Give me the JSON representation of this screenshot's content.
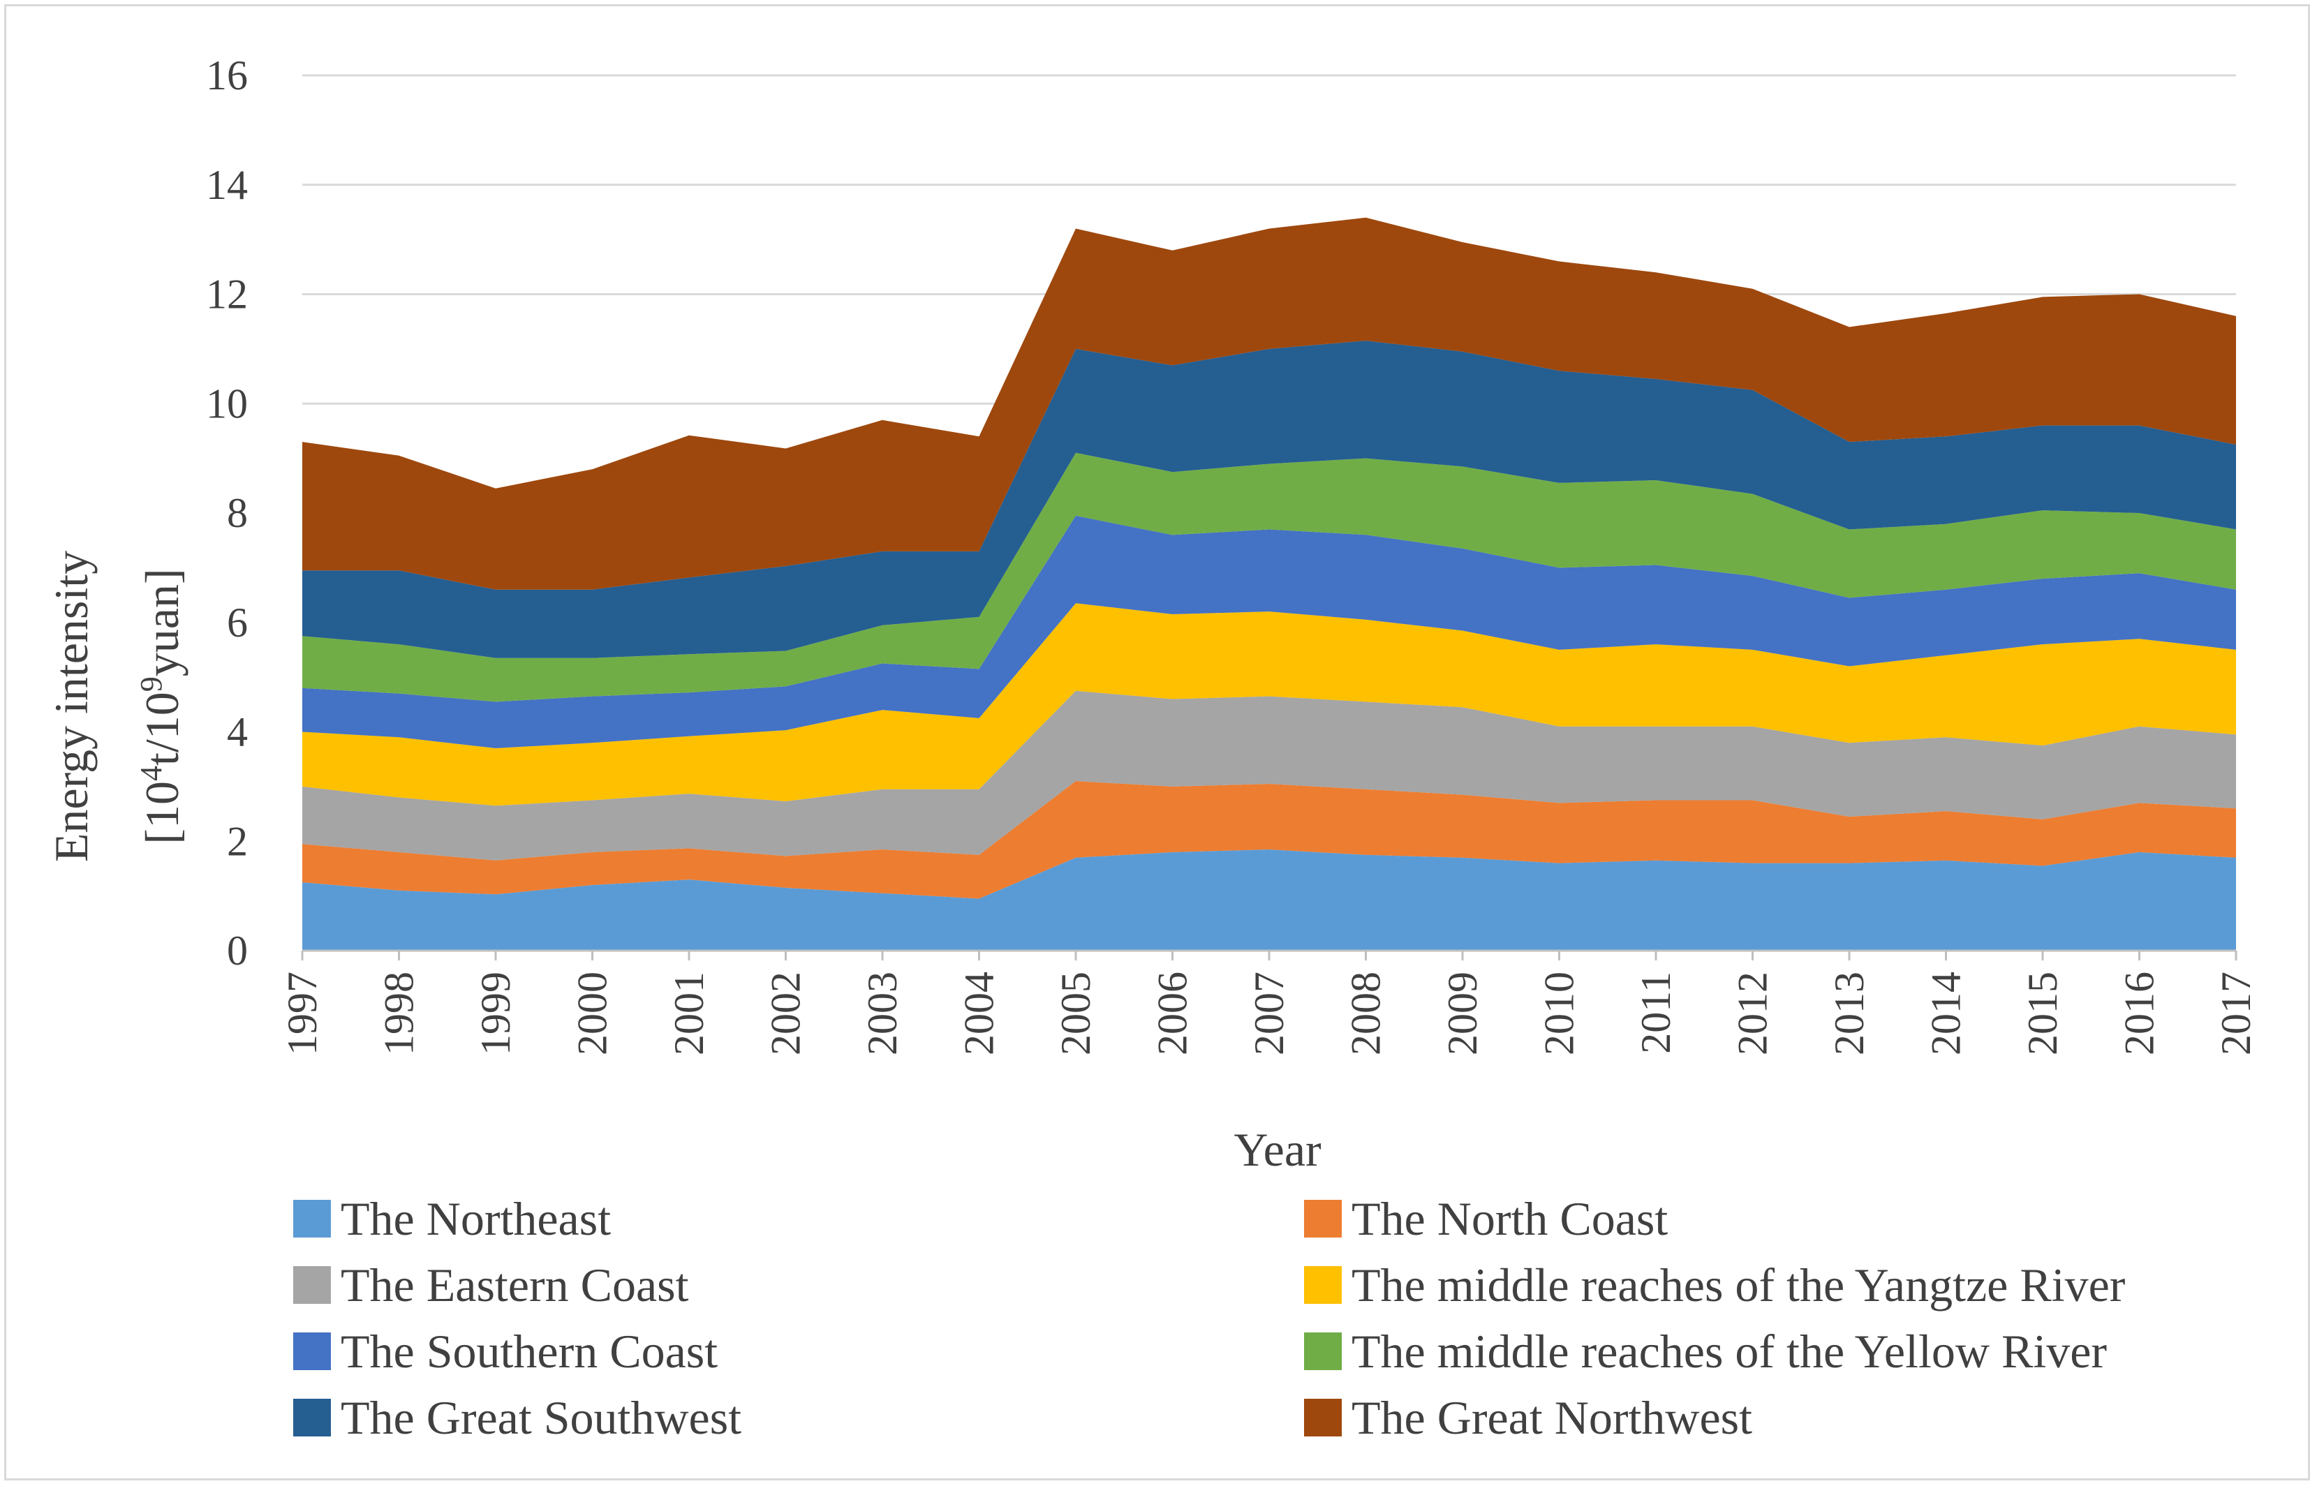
{
  "chart_data": {
    "type": "area",
    "stacked": true,
    "title": "",
    "xlabel": "Year",
    "ylabel_line1": "Energy intensity",
    "ylabel_line2_prefix": "[10",
    "ylabel_sup1": "4",
    "ylabel_line2_mid": "t/10",
    "ylabel_sup2": "9",
    "ylabel_line2_suffix": "yuan]",
    "ylim": [
      0,
      16
    ],
    "yticks": [
      0,
      2,
      4,
      6,
      8,
      10,
      12,
      14,
      16
    ],
    "ytick_labels": [
      "0",
      "2",
      "4",
      "6",
      "8",
      "10",
      "12",
      "14",
      "16"
    ],
    "grid": true,
    "legend_position": "bottom",
    "categories": [
      "1997",
      "1998",
      "1999",
      "2000",
      "2001",
      "2002",
      "2003",
      "2004",
      "2005",
      "2006",
      "2007",
      "2008",
      "2009",
      "2010",
      "2011",
      "2012",
      "2013",
      "2014",
      "2015",
      "2016",
      "2017"
    ],
    "series": [
      {
        "name": "The Northeast",
        "color": "#5b9bd5",
        "values": [
          1.25,
          1.1,
          1.03,
          1.2,
          1.3,
          1.15,
          1.05,
          0.95,
          1.7,
          1.8,
          1.85,
          1.75,
          1.7,
          1.6,
          1.65,
          1.6,
          1.6,
          1.65,
          1.55,
          1.8,
          1.7
        ]
      },
      {
        "name": "The North Coast",
        "color": "#ed7d31",
        "values": [
          0.7,
          0.7,
          0.62,
          0.6,
          0.57,
          0.58,
          0.8,
          0.8,
          1.4,
          1.2,
          1.2,
          1.2,
          1.15,
          1.1,
          1.1,
          1.15,
          0.85,
          0.9,
          0.85,
          0.9,
          0.9
        ]
      },
      {
        "name": "The Eastern Coast",
        "color": "#a5a5a5",
        "values": [
          1.05,
          1.0,
          1.0,
          0.95,
          1.0,
          1.0,
          1.1,
          1.2,
          1.65,
          1.6,
          1.6,
          1.6,
          1.6,
          1.4,
          1.35,
          1.35,
          1.35,
          1.35,
          1.35,
          1.4,
          1.35
        ]
      },
      {
        "name": "The middle reaches of the Yangtze River",
        "color": "#ffc000",
        "values": [
          1.0,
          1.1,
          1.05,
          1.05,
          1.05,
          1.3,
          1.45,
          1.3,
          1.6,
          1.55,
          1.55,
          1.5,
          1.4,
          1.4,
          1.5,
          1.4,
          1.4,
          1.5,
          1.85,
          1.6,
          1.55
        ]
      },
      {
        "name": "The Southern Coast",
        "color": "#4472c4",
        "values": [
          0.8,
          0.8,
          0.85,
          0.85,
          0.8,
          0.8,
          0.85,
          0.9,
          1.6,
          1.45,
          1.5,
          1.55,
          1.5,
          1.5,
          1.45,
          1.35,
          1.25,
          1.2,
          1.2,
          1.2,
          1.1
        ]
      },
      {
        "name": "The middle reaches of the Yellow River",
        "color": "#70ad47",
        "values": [
          0.95,
          0.9,
          0.8,
          0.7,
          0.7,
          0.65,
          0.7,
          0.95,
          1.15,
          1.15,
          1.2,
          1.4,
          1.5,
          1.55,
          1.55,
          1.5,
          1.25,
          1.2,
          1.25,
          1.1,
          1.1
        ]
      },
      {
        "name": "The Great Southwest",
        "color": "#255e91",
        "values": [
          1.2,
          1.35,
          1.25,
          1.25,
          1.4,
          1.55,
          1.35,
          1.2,
          1.9,
          1.95,
          2.1,
          2.15,
          2.1,
          2.05,
          1.85,
          1.9,
          1.6,
          1.6,
          1.55,
          1.6,
          1.55
        ]
      },
      {
        "name": "The Great Northwest",
        "color": "#9e480e",
        "values": [
          2.35,
          2.1,
          1.85,
          2.2,
          2.6,
          2.15,
          2.4,
          2.1,
          2.2,
          2.1,
          2.2,
          2.25,
          2.0,
          2.0,
          1.95,
          1.85,
          2.1,
          2.25,
          2.35,
          2.4,
          2.35
        ]
      }
    ]
  }
}
